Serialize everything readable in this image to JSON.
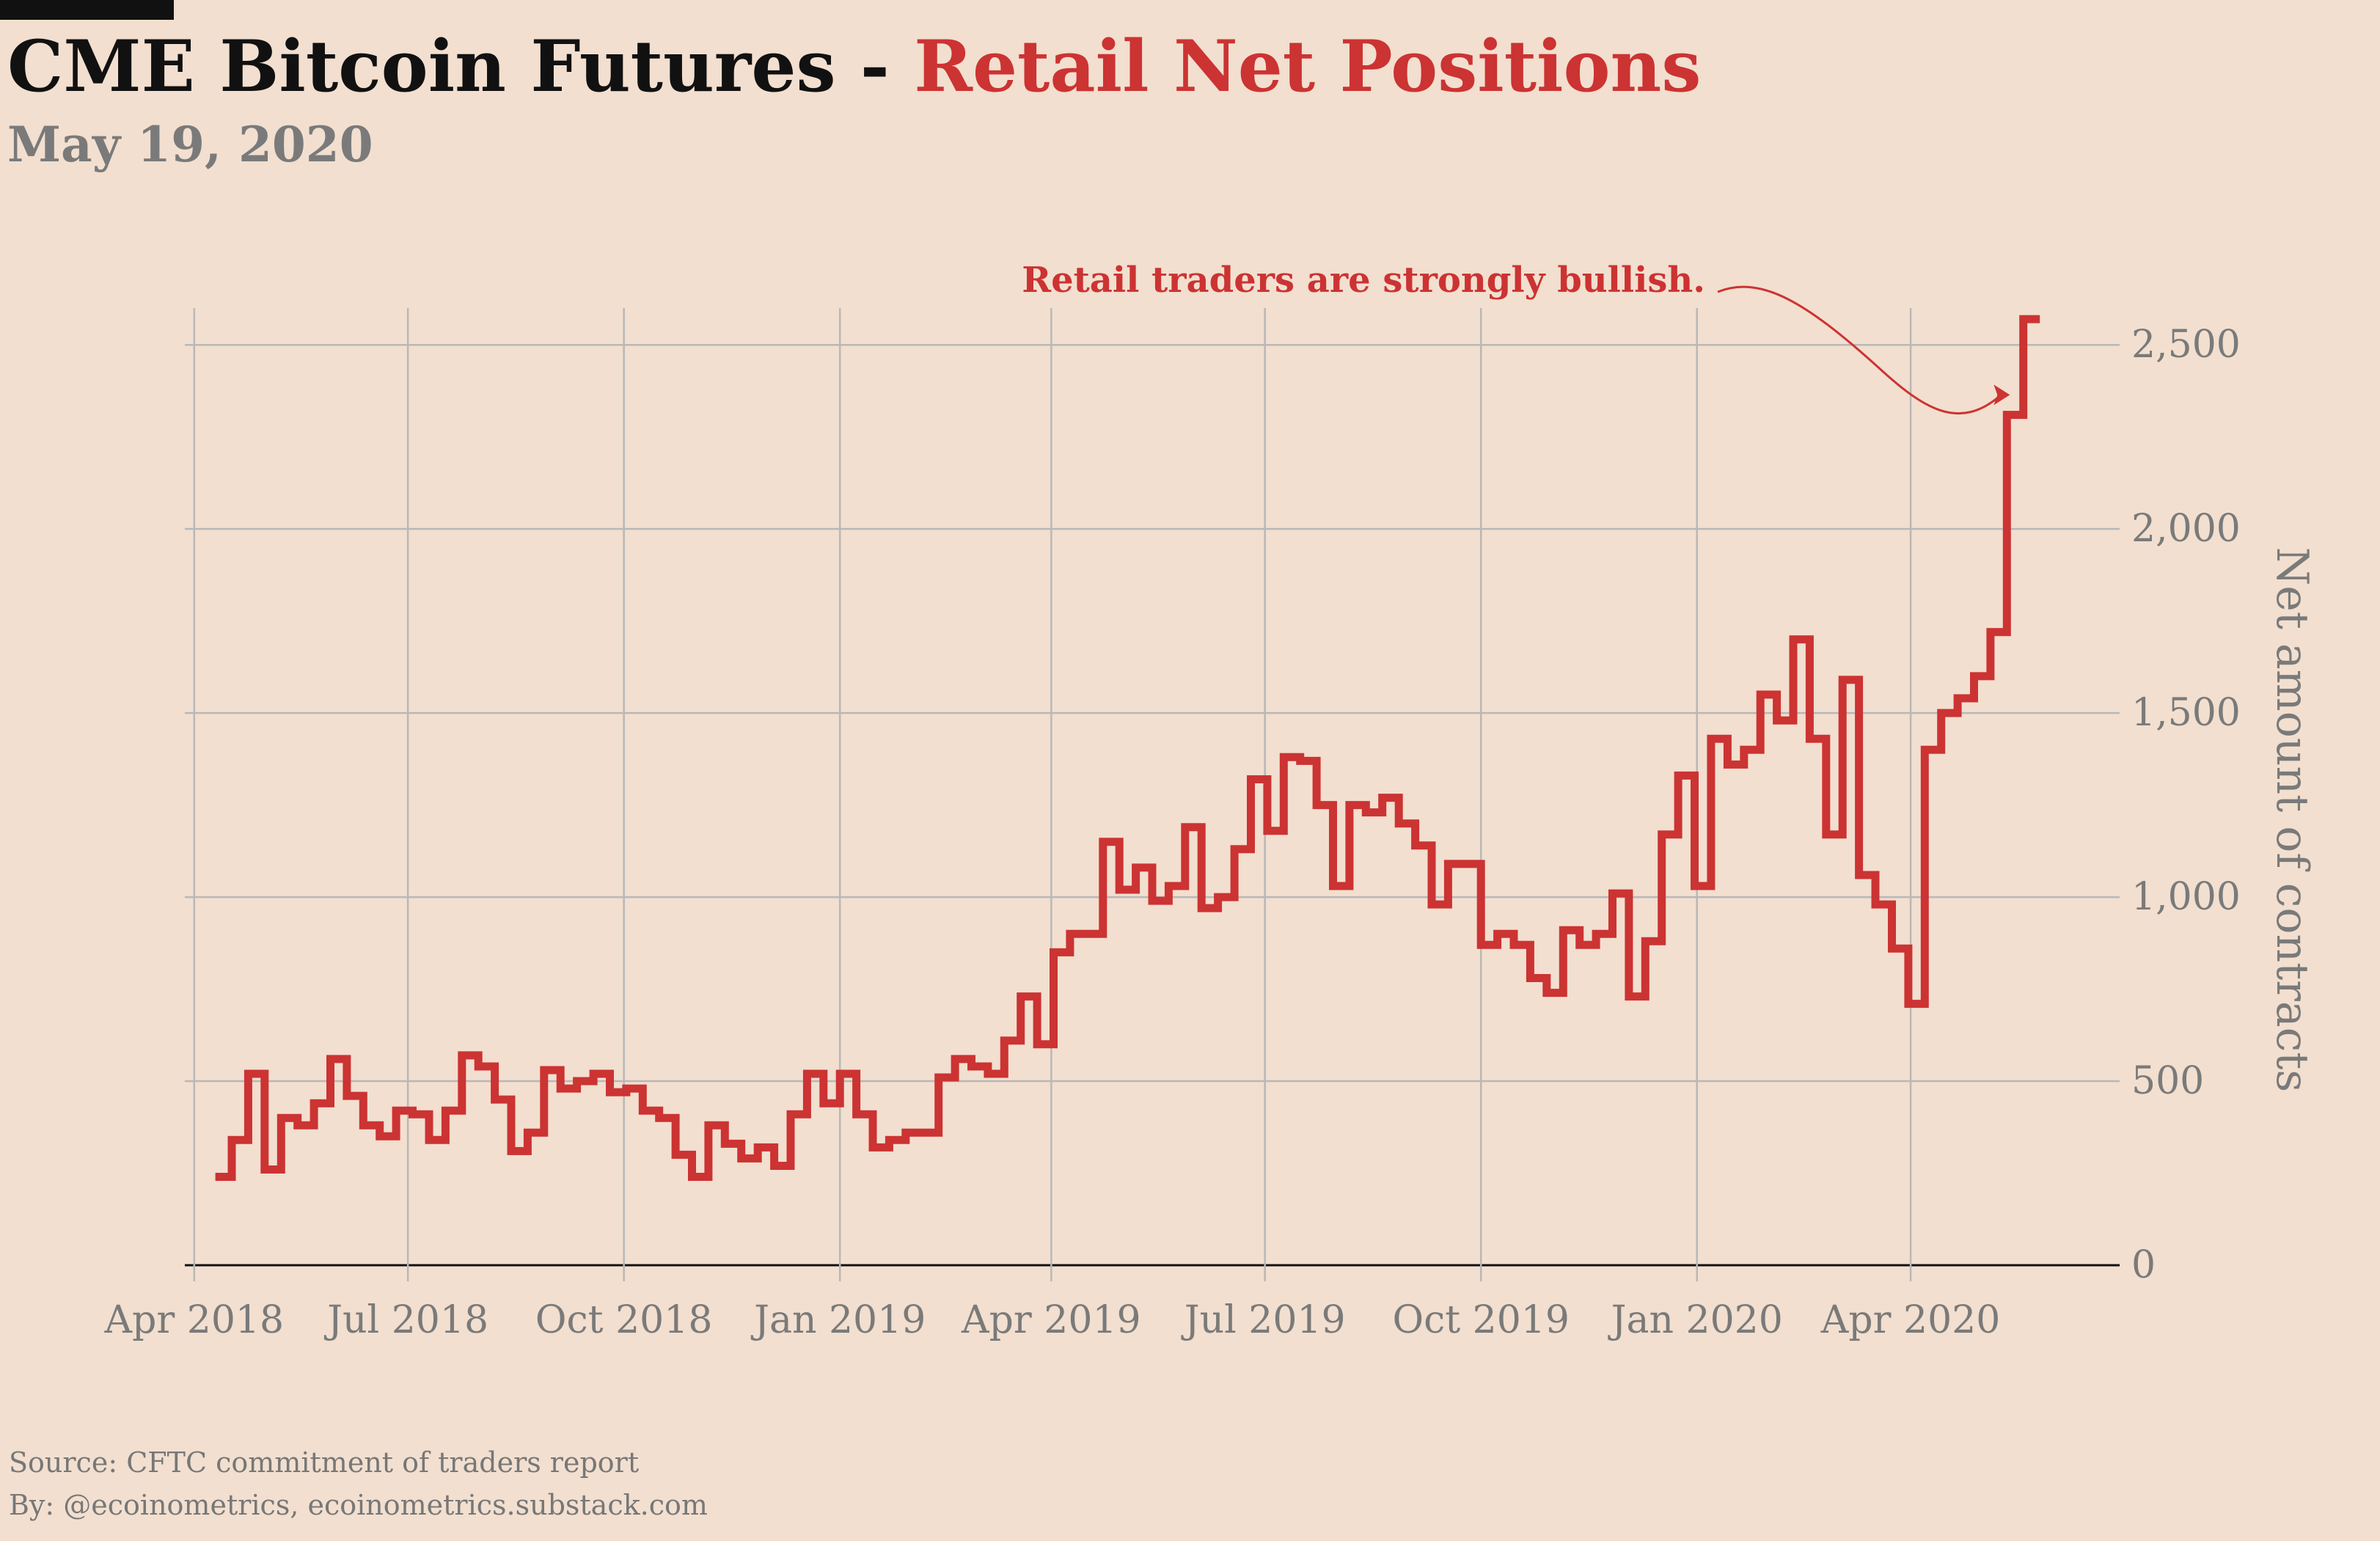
{
  "header": {
    "title_main": "CME Bitcoin Futures - ",
    "title_accent": "Retail Net Positions",
    "subtitle": "May 19, 2020"
  },
  "colors": {
    "background": "#f2dfcf",
    "series": "#cc3333",
    "grid": "#b8b8b8",
    "axis_text": "#7a7a7a",
    "title": "#111111"
  },
  "chart_data": {
    "type": "line",
    "step": true,
    "title": "CME Bitcoin Futures - Retail Net Positions",
    "subtitle": "May 19, 2020",
    "xlabel": "",
    "ylabel": "Net amount of contracts",
    "y_axis_side": "right",
    "ylim": [
      0,
      2600
    ],
    "yticks": [
      0,
      500,
      1000,
      1500,
      2000,
      2500
    ],
    "ytick_labels": [
      "0",
      "500",
      "1,000",
      "1,500",
      "2,000",
      "2,500"
    ],
    "xlim": [
      "2018-03-28",
      "2020-06-29"
    ],
    "xticks": [
      "2018-04-01",
      "2018-07-01",
      "2018-10-01",
      "2019-01-01",
      "2019-04-01",
      "2019-07-01",
      "2019-10-01",
      "2020-01-01",
      "2020-04-01"
    ],
    "xtick_labels": [
      "Apr 2018",
      "Jul 2018",
      "Oct 2018",
      "Jan 2019",
      "Apr 2019",
      "Jul 2019",
      "Oct 2019",
      "Jan 2020",
      "Apr 2020"
    ],
    "grid": true,
    "series": [
      {
        "name": "Retail net positions",
        "start_date": "2018-04-10",
        "interval_days": 7,
        "values": [
          240,
          340,
          520,
          260,
          400,
          380,
          440,
          560,
          460,
          380,
          350,
          420,
          410,
          340,
          420,
          570,
          540,
          450,
          310,
          360,
          530,
          480,
          500,
          520,
          470,
          480,
          420,
          400,
          300,
          240,
          380,
          330,
          290,
          320,
          270,
          410,
          520,
          440,
          520,
          410,
          320,
          340,
          360,
          360,
          510,
          560,
          540,
          520,
          610,
          730,
          600,
          850,
          900,
          900,
          1150,
          1020,
          1080,
          990,
          1030,
          1190,
          970,
          1000,
          1130,
          1320,
          1180,
          1380,
          1370,
          1250,
          1030,
          1250,
          1230,
          1270,
          1200,
          1140,
          980,
          1090,
          1090,
          870,
          900,
          870,
          780,
          740,
          910,
          870,
          900,
          1010,
          730,
          880,
          1170,
          1330,
          1030,
          1430,
          1360,
          1400,
          1550,
          1480,
          1700,
          1430,
          1170,
          1590,
          1060,
          980,
          860,
          710,
          1400,
          1500,
          1540,
          1600,
          1720,
          2310,
          2570
        ]
      }
    ],
    "annotations": [
      {
        "text": "Retail traders are strongly bullish.",
        "points_to": {
          "x": "2020-05-12",
          "y": 2400
        }
      }
    ]
  },
  "footer": {
    "source": "Source: CFTC commitment of traders report",
    "byline": "By: @ecoinometrics, ecoinometrics.substack.com"
  }
}
